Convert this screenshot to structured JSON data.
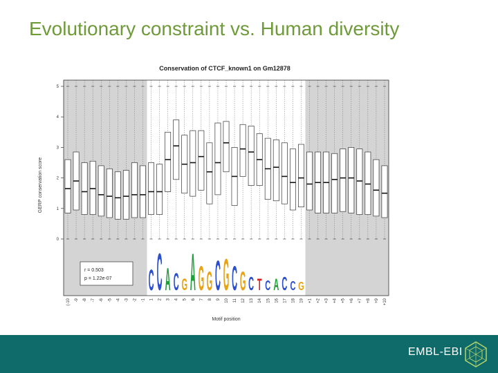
{
  "slide": {
    "title": "Evolutionary constraint vs. Human diversity"
  },
  "footer": {
    "brand": "EMBL-EBI",
    "logo_icon": "embl-ebi-hexagon-logo",
    "background_color": "#0f6a6a"
  },
  "chart_data": {
    "type": "boxplot",
    "title": "Conservation of CTCF_known1 on Gm12878",
    "xlabel": "Motif position",
    "ylabel": "GERP conservation score",
    "ylim": [
      0,
      5
    ],
    "yticks": [
      0,
      1,
      2,
      3,
      4,
      5
    ],
    "grid": true,
    "shaded_flank_color": "#d4d4d4",
    "categories": [
      "(-10",
      "-9",
      "-8",
      "-7",
      "-6",
      "-5",
      "-4",
      "-3",
      "-2",
      "-1",
      "1",
      "2",
      "3",
      "4",
      "5",
      "6",
      "7",
      "8",
      "9",
      "10",
      "11",
      "12",
      "13",
      "14",
      "15",
      "16",
      "17",
      "18",
      "19",
      "+1",
      "+2",
      "+3",
      "+4",
      "+5",
      "+6",
      "+7",
      "+8",
      "+9",
      "+10"
    ],
    "region": [
      "flank",
      "flank",
      "flank",
      "flank",
      "flank",
      "flank",
      "flank",
      "flank",
      "flank",
      "flank",
      "motif",
      "motif",
      "motif",
      "motif",
      "motif",
      "motif",
      "motif",
      "motif",
      "motif",
      "motif",
      "motif",
      "motif",
      "motif",
      "motif",
      "motif",
      "motif",
      "motif",
      "motif",
      "motif",
      "flank",
      "flank",
      "flank",
      "flank",
      "flank",
      "flank",
      "flank",
      "flank",
      "flank",
      "flank"
    ],
    "boxes": [
      {
        "q1": 0.85,
        "median": 1.65,
        "q3": 2.6
      },
      {
        "q1": 0.95,
        "median": 1.9,
        "q3": 2.85
      },
      {
        "q1": 0.8,
        "median": 1.55,
        "q3": 2.5
      },
      {
        "q1": 0.8,
        "median": 1.65,
        "q3": 2.55
      },
      {
        "q1": 0.75,
        "median": 1.45,
        "q3": 2.4
      },
      {
        "q1": 0.7,
        "median": 1.4,
        "q3": 2.3
      },
      {
        "q1": 0.65,
        "median": 1.35,
        "q3": 2.2
      },
      {
        "q1": 0.65,
        "median": 1.4,
        "q3": 2.25
      },
      {
        "q1": 0.7,
        "median": 1.45,
        "q3": 2.5
      },
      {
        "q1": 0.7,
        "median": 1.45,
        "q3": 2.4
      },
      {
        "q1": 0.8,
        "median": 1.55,
        "q3": 2.5
      },
      {
        "q1": 0.8,
        "median": 1.55,
        "q3": 2.45
      },
      {
        "q1": 1.55,
        "median": 2.6,
        "q3": 3.5
      },
      {
        "q1": 1.95,
        "median": 3.05,
        "q3": 3.9
      },
      {
        "q1": 1.5,
        "median": 2.45,
        "q3": 3.4
      },
      {
        "q1": 1.4,
        "median": 2.5,
        "q3": 3.55
      },
      {
        "q1": 1.6,
        "median": 2.7,
        "q3": 3.55
      },
      {
        "q1": 1.15,
        "median": 2.2,
        "q3": 3.15
      },
      {
        "q1": 1.45,
        "median": 2.5,
        "q3": 3.8
      },
      {
        "q1": 2.2,
        "median": 3.15,
        "q3": 3.85
      },
      {
        "q1": 1.1,
        "median": 2.05,
        "q3": 3.0
      },
      {
        "q1": 2.05,
        "median": 2.95,
        "q3": 3.75
      },
      {
        "q1": 1.75,
        "median": 2.85,
        "q3": 3.7
      },
      {
        "q1": 1.75,
        "median": 2.6,
        "q3": 3.45
      },
      {
        "q1": 1.3,
        "median": 2.3,
        "q3": 3.3
      },
      {
        "q1": 1.25,
        "median": 2.35,
        "q3": 3.25
      },
      {
        "q1": 1.15,
        "median": 2.05,
        "q3": 3.15
      },
      {
        "q1": 0.95,
        "median": 1.85,
        "q3": 2.95
      },
      {
        "q1": 1.05,
        "median": 2.0,
        "q3": 3.1
      },
      {
        "q1": 0.95,
        "median": 1.8,
        "q3": 2.85
      },
      {
        "q1": 0.85,
        "median": 1.85,
        "q3": 2.85
      },
      {
        "q1": 0.85,
        "median": 1.85,
        "q3": 2.85
      },
      {
        "q1": 0.85,
        "median": 1.95,
        "q3": 2.8
      },
      {
        "q1": 0.9,
        "median": 2.0,
        "q3": 2.95
      },
      {
        "q1": 0.85,
        "median": 2.0,
        "q3": 3.0
      },
      {
        "q1": 0.8,
        "median": 1.9,
        "q3": 2.95
      },
      {
        "q1": 0.8,
        "median": 1.8,
        "q3": 2.85
      },
      {
        "q1": 0.75,
        "median": 1.6,
        "q3": 2.6
      },
      {
        "q1": 0.7,
        "median": 1.5,
        "q3": 2.4
      }
    ],
    "motif_logo": [
      "C",
      "C",
      "A",
      "C",
      "G",
      "A",
      "G",
      "G",
      "C",
      "G",
      "C",
      "G",
      "C",
      "T",
      "C",
      "A",
      "C",
      "C",
      "G"
    ],
    "annotation": {
      "r": "r = 0.503",
      "p": "p = 1.22e-07"
    }
  }
}
